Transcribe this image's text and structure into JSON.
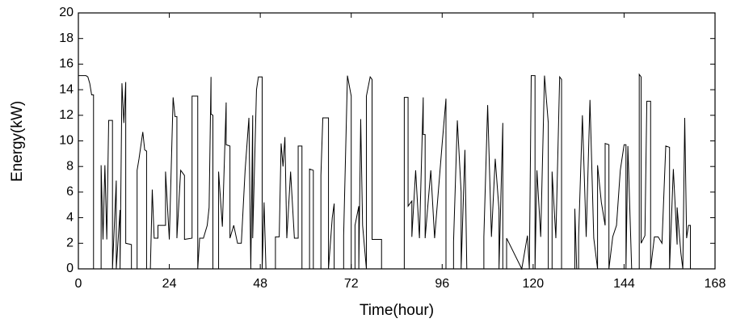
{
  "chart_data": {
    "type": "line",
    "xlabel": "Time(hour)",
    "ylabel": "Energy(kW)",
    "xlim": [
      0,
      168
    ],
    "xticks": [
      0,
      24,
      48,
      72,
      96,
      120,
      144,
      168
    ],
    "ylim": [
      0,
      20
    ],
    "yticks": [
      0,
      2,
      4,
      6,
      8,
      10,
      12,
      14,
      16,
      18,
      20
    ],
    "color": "#000000",
    "x": [
      0,
      2,
      2.5,
      3,
      3.5,
      4,
      4,
      6,
      6,
      6.5,
      7,
      7.5,
      8,
      9,
      9,
      10,
      10,
      11,
      11,
      11.5,
      12,
      12.5,
      12.5,
      14,
      14,
      15.5,
      15.5,
      16,
      17,
      17.5,
      18,
      18,
      19,
      19.5,
      20,
      21,
      21,
      23,
      23,
      24,
      25,
      25.5,
      26,
      26,
      27,
      28,
      28,
      30,
      30,
      31.5,
      31.5,
      32,
      33,
      34,
      34.5,
      35,
      35,
      35.5,
      35.5,
      37,
      37,
      38,
      39,
      39,
      40,
      40,
      41,
      42,
      43,
      44,
      45,
      45.5,
      46,
      46,
      47,
      47.5,
      48.5,
      48.5,
      49,
      49.5,
      52,
      52,
      53,
      53.5,
      54,
      54.5,
      55,
      56,
      57,
      58,
      58,
      59,
      59,
      61,
      61,
      62,
      62,
      64,
      64,
      64.5,
      66,
      66,
      67,
      67.5,
      67.5,
      70,
      70,
      71,
      72,
      72,
      73,
      73,
      74,
      74,
      74.5,
      75,
      76,
      76,
      77,
      77.5,
      77.5,
      80,
      80,
      86,
      86,
      87,
      87,
      88,
      88,
      89,
      90,
      91,
      91,
      91.5,
      91.5,
      93,
      94,
      96,
      97,
      97,
      99,
      99,
      100,
      101,
      101,
      102,
      102.5,
      107,
      107,
      108,
      109,
      110,
      111,
      111,
      112,
      112,
      113,
      113,
      117,
      118.5,
      119,
      119.5,
      120.5,
      120.5,
      121,
      122,
      123,
      124,
      124,
      125,
      125,
      126,
      127,
      127.5,
      127.5,
      131,
      131,
      131.5,
      132,
      132,
      133,
      134,
      135,
      136,
      137,
      137,
      138,
      139,
      139,
      140,
      140,
      141,
      142,
      143,
      144,
      144.5,
      144.5,
      145,
      146,
      148,
      148,
      148.5,
      148.5,
      149.5,
      150,
      151,
      151,
      152,
      153,
      154,
      155,
      156,
      156,
      157,
      158,
      158,
      159,
      159.5,
      160,
      160.5,
      161,
      161.5,
      161.5,
      168
    ],
    "values": [
      15.1,
      15.1,
      15,
      14.5,
      13.6,
      13.6,
      0,
      0,
      8.1,
      2.3,
      8.1,
      2.3,
      11.6,
      11.6,
      0,
      6.9,
      0,
      4.6,
      0,
      14.5,
      11.4,
      14.6,
      2,
      1.9,
      0,
      0,
      7.7,
      8.6,
      10.7,
      9.3,
      9.2,
      0,
      0,
      6.2,
      2.4,
      2.4,
      3.4,
      3.4,
      7.6,
      2.3,
      13.4,
      11.9,
      11.9,
      2.4,
      7.7,
      7.3,
      2.3,
      2.4,
      13.5,
      13.5,
      0,
      2.4,
      2.4,
      3.4,
      4.8,
      15,
      12.1,
      12,
      0,
      0,
      7.6,
      3.3,
      13,
      9.7,
      9.6,
      2.4,
      3.4,
      2,
      2,
      7.7,
      11.8,
      0,
      12,
      2.4,
      14,
      15,
      15,
      0,
      5.2,
      0,
      0,
      2.5,
      2.5,
      9.8,
      8,
      10.3,
      2.4,
      7.6,
      2.4,
      2.4,
      9.6,
      9.6,
      0,
      0,
      7.8,
      7.7,
      0,
      0,
      7.3,
      11.8,
      11.8,
      0,
      4,
      5.1,
      0,
      0,
      2.6,
      15.1,
      13.5,
      0,
      0,
      3.4,
      4.9,
      0,
      11.7,
      3.4,
      0,
      13.5,
      15,
      14.8,
      2.3,
      2.3,
      0,
      0,
      13.4,
      13.4,
      4.9,
      5.3,
      2.5,
      7.7,
      2.4,
      13.4,
      10.5,
      10.5,
      2.4,
      7.7,
      2.4,
      9.8,
      13.3,
      0,
      0,
      2.1,
      11.6,
      6,
      0,
      9.3,
      0,
      0,
      2.5,
      12.8,
      2.5,
      8.6,
      4.6,
      0,
      11.4,
      0,
      0,
      2.4,
      0,
      2.6,
      0,
      15.1,
      15.1,
      0,
      7.7,
      2.5,
      15.1,
      11.4,
      0,
      0,
      7.6,
      2.4,
      15,
      14.8,
      0,
      0,
      4.7,
      0,
      0,
      2.5,
      12,
      2.5,
      13.2,
      2.4,
      0,
      8.1,
      5.2,
      3.4,
      9.8,
      9.7,
      0,
      2.5,
      3.4,
      7.7,
      9.7,
      9.7,
      0,
      9.6,
      0,
      0,
      15.2,
      15,
      2,
      2.6,
      13.1,
      13.1,
      0,
      2.5,
      2.5,
      2,
      9.6,
      9.5,
      0,
      7.8,
      1.9,
      4.8,
      1.2,
      0,
      11.8,
      2.4,
      3.4,
      3.4,
      0,
      0
    ]
  }
}
